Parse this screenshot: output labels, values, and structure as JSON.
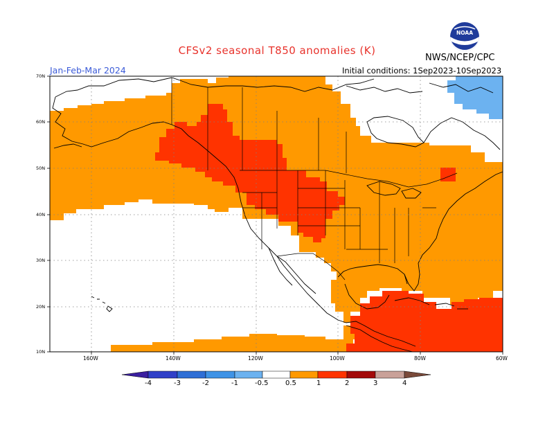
{
  "header": {
    "title": "CFSv2 seasonal T850 anomalies (K)",
    "period": "Jan-Feb-Mar 2024",
    "initial_conditions": "Initial conditions: 1Sep2023-10Sep2023",
    "agency": "NWS/NCEP/CPC",
    "logo_text": "NOAA"
  },
  "map": {
    "lat_labels": [
      "70N",
      "60N",
      "50N",
      "40N",
      "30N",
      "20N",
      "10N"
    ],
    "lon_labels": [
      "160W",
      "140W",
      "120W",
      "100W",
      "80W",
      "60W"
    ],
    "lat_range": [
      10,
      70
    ],
    "lon_range": [
      -170,
      -60
    ]
  },
  "colorbar": {
    "tick_labels": [
      "-4",
      "-3",
      "-2",
      "-1",
      "-0.5",
      "0.5",
      "1",
      "2",
      "3",
      "4"
    ],
    "colors": [
      "#3b1fa0",
      "#3040c8",
      "#2f6fd6",
      "#3f93e6",
      "#6cb2f0",
      "#ffffff",
      "#ff9900",
      "#ff3300",
      "#a30a0a",
      "#c9a199",
      "#7a4a3a"
    ]
  },
  "legend_colors": {
    "anomaly_0_5_to_1": "#ff9900",
    "anomaly_1_to_2": "#ff3300",
    "anomaly_neg_1_to_neg_0_5": "#6cb2f0"
  }
}
